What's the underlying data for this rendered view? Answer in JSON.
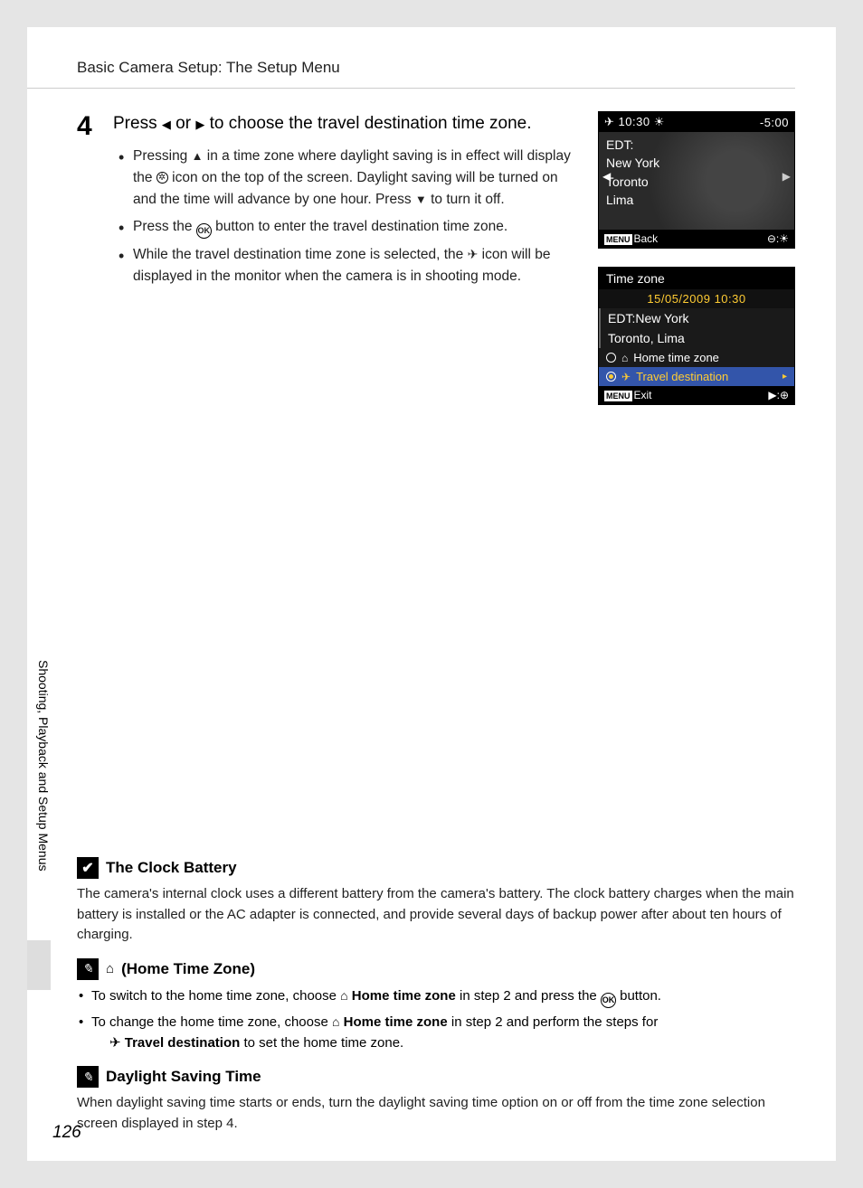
{
  "header": "Basic Camera Setup: The Setup Menu",
  "step": {
    "num": "4",
    "title_a": "Press ",
    "title_b": " or ",
    "title_c": " to choose the travel destination time zone.",
    "b1a": "Pressing ",
    "b1b": " in a time zone where daylight saving is in effect will display the ",
    "b1c": " icon on the top of the screen. Daylight saving will be turned on and the time will advance by one hour. Press ",
    "b1d": " to turn it off.",
    "b2a": "Press the ",
    "b2b": " button to enter the travel destination time zone.",
    "b3a": "While the travel destination time zone is selected, the ",
    "b3b": " icon will be displayed in the monitor when the camera is in shooting mode."
  },
  "screenA": {
    "time": "10:30",
    "offset": "-5:00",
    "line1": "EDT:",
    "line2": "New York",
    "line3": "Toronto",
    "line4": "Lima",
    "back": "Back"
  },
  "screenB": {
    "title": "Time zone",
    "date": "15/05/2009 10:30",
    "row1": "EDT:New York",
    "row2": "Toronto, Lima",
    "opt1": "Home time zone",
    "opt2": "Travel destination",
    "exit": "Exit"
  },
  "sideText": "Shooting, Playback and Setup Menus",
  "notes": {
    "n1_title": "The Clock Battery",
    "n1_body": "The camera's internal clock uses a different battery from the camera's battery. The clock battery charges when the main battery is installed or the AC adapter is connected, and provide several days of backup power after about ten hours of charging.",
    "n2_title": "(Home Time Zone)",
    "n2_b1a": "To switch to the home time zone, choose ",
    "n2_b1_bold": "Home time zone",
    "n2_b1b": " in step 2 and press the ",
    "n2_b1c": " button.",
    "n2_b2a": "To change the home time zone, choose ",
    "n2_b2_bold": "Home time zone",
    "n2_b2b": " in step 2 and perform the steps for ",
    "n2_b2_bold2": "Travel destination",
    "n2_b2c": " to set the home time zone.",
    "n3_title": "Daylight Saving Time",
    "n3_body": "When daylight saving time starts or ends, turn the daylight saving time option on or off from the time zone selection screen displayed in step 4."
  },
  "pageNum": "126"
}
